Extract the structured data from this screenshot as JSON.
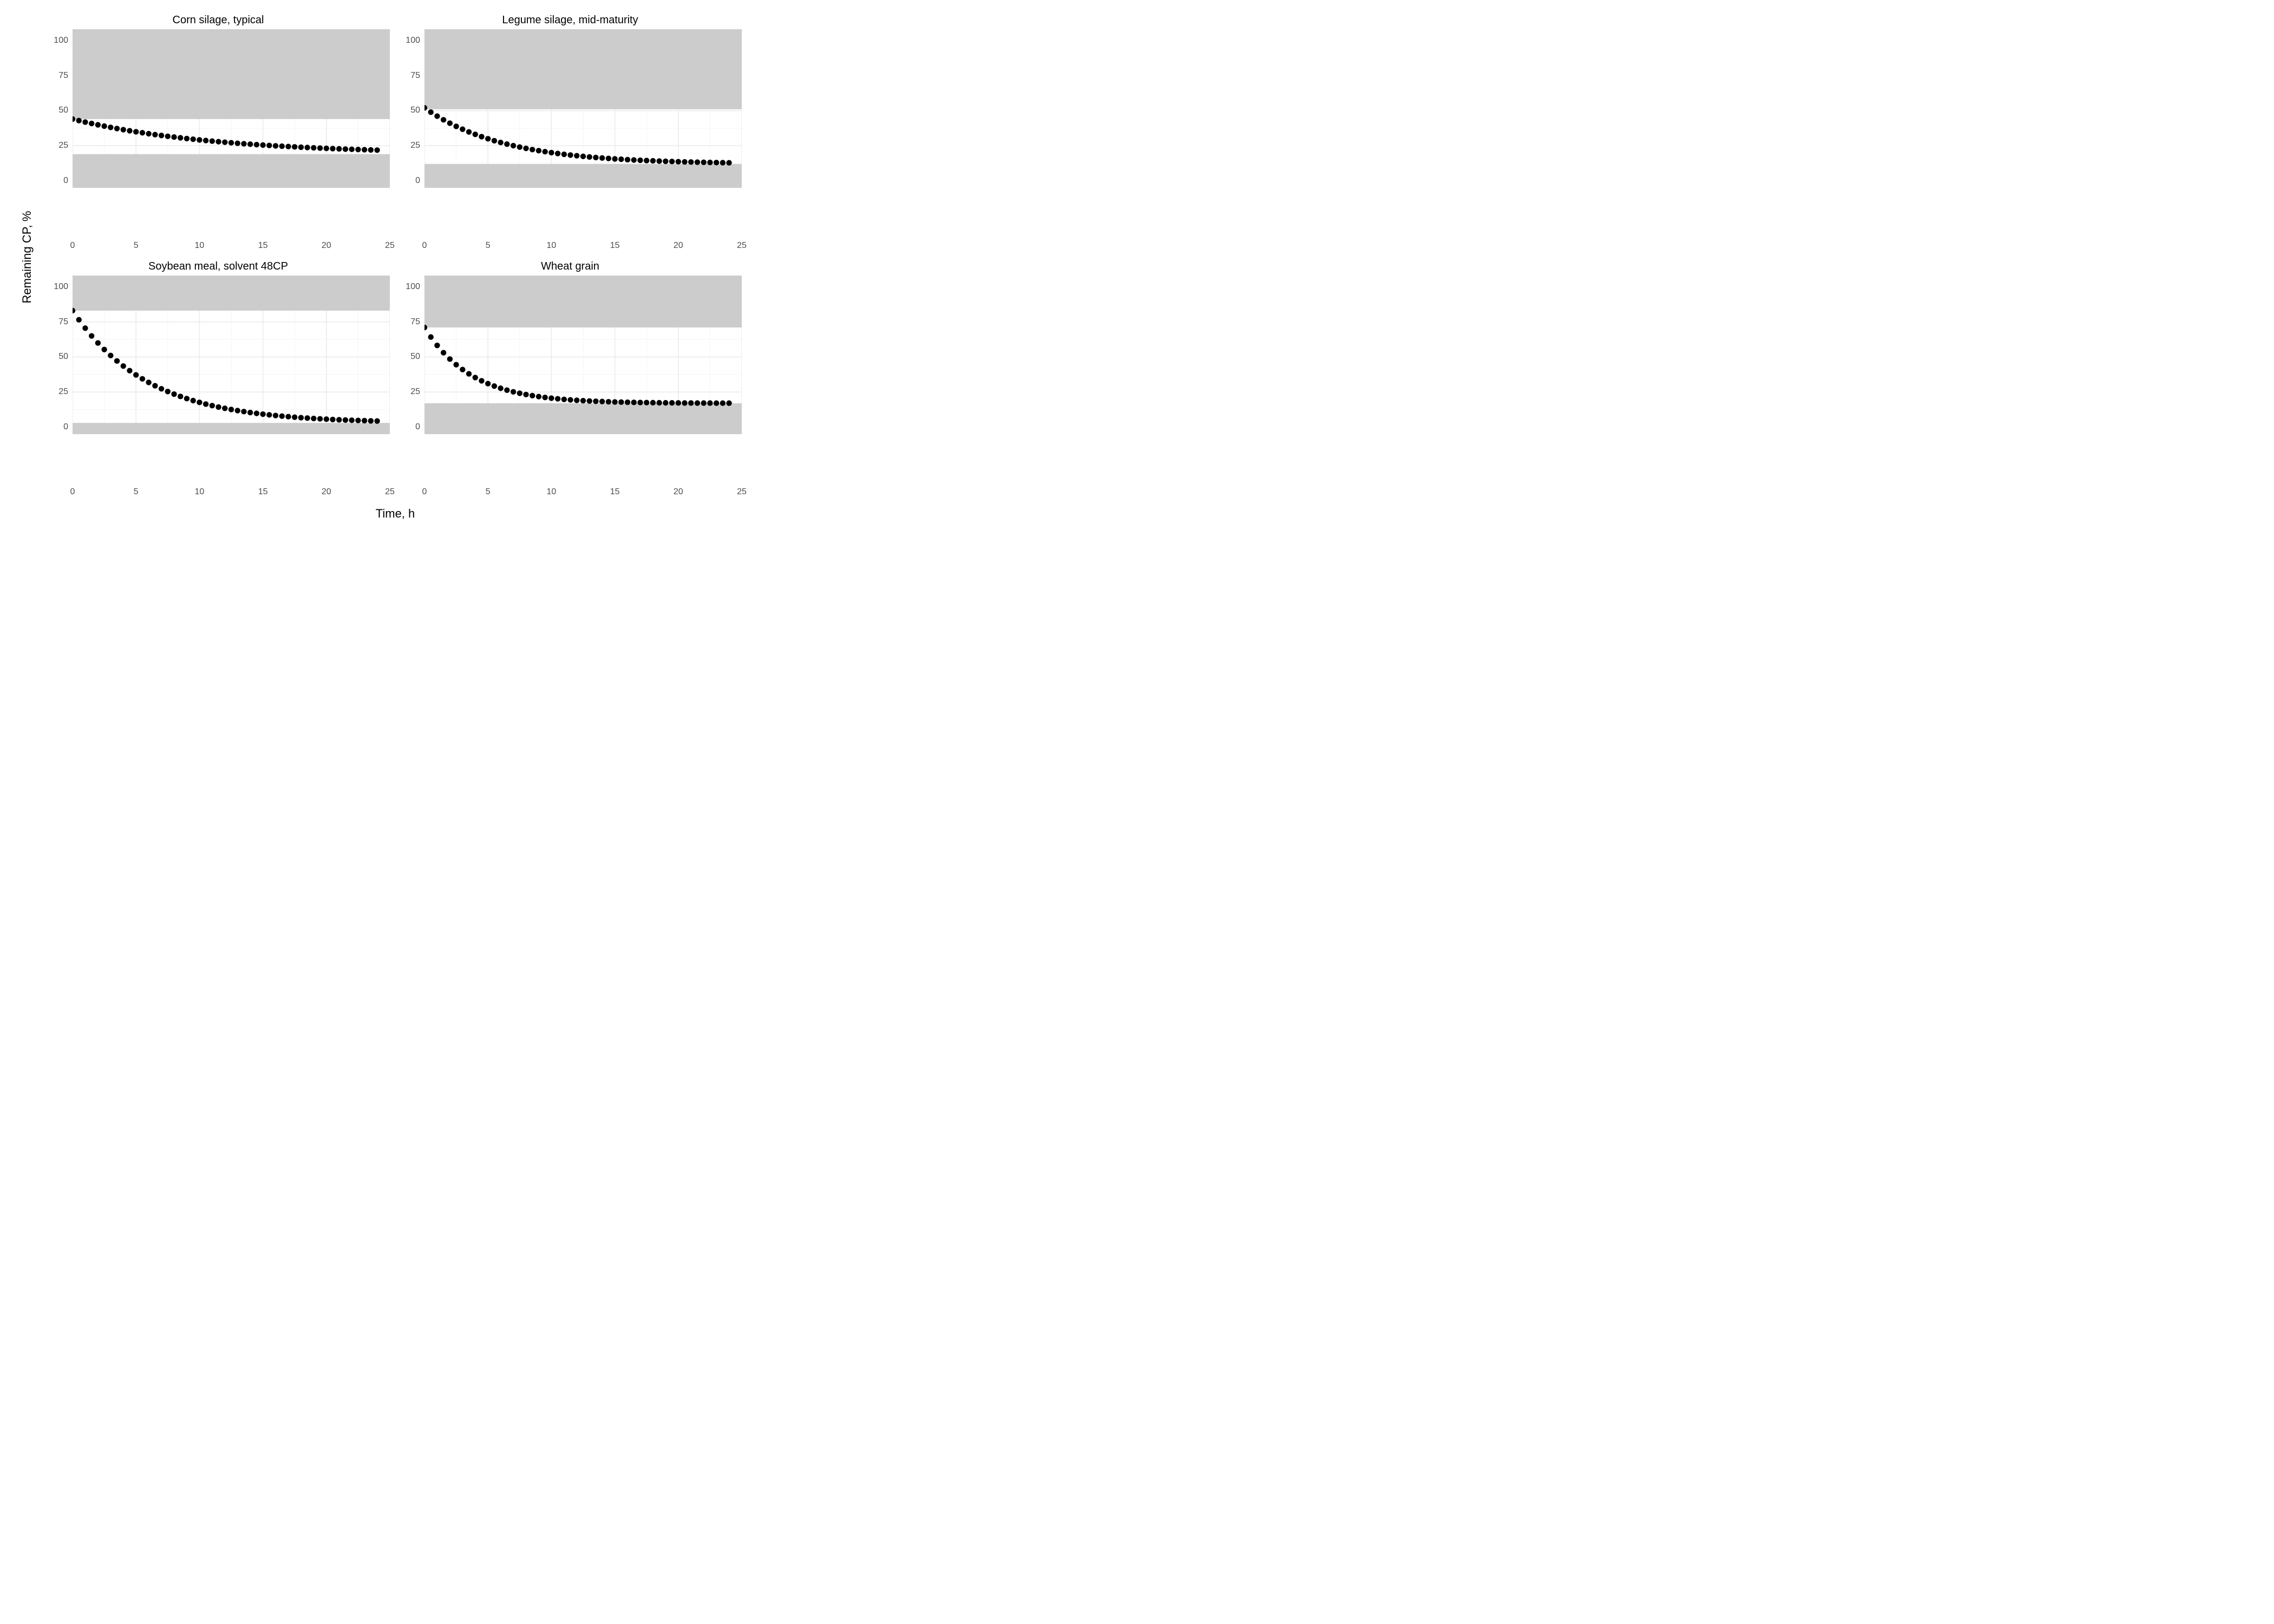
{
  "figure": {
    "xlabel": "Time, h",
    "ylabel": "Remaining CP, %",
    "xlim": [
      0,
      25
    ],
    "ylim": [
      -5,
      108
    ],
    "xticks": [
      0,
      5,
      10,
      15,
      20,
      25
    ],
    "yticks": [
      0,
      25,
      50,
      75,
      100
    ],
    "panel_bg": "#ffffff",
    "outer_bg": "#ffffff",
    "grid_major_color": "#ebebeb",
    "grid_minor_color": "#f5f5f5",
    "band_fill": "#cccccc",
    "band_opacity": 1.0,
    "point_color": "#000000",
    "point_radius": 5.2,
    "title_fontsize": 20,
    "tick_fontsize": 16,
    "label_fontsize": 22,
    "x_step": 0.5,
    "panels": [
      {
        "title": "Corn silage, typical",
        "upper_band": {
          "ymin": 44,
          "ymax": 108
        },
        "lower_band": {
          "ymin": -5,
          "ymax": 19
        },
        "curve": {
          "A": 25,
          "plateau": 19,
          "k": 0.09,
          "t0": 0
        }
      },
      {
        "title": "Legume silage, mid-maturity",
        "upper_band": {
          "ymin": 51,
          "ymax": 108
        },
        "lower_band": {
          "ymin": -5,
          "ymax": 12
        },
        "curve": {
          "A": 40,
          "plateau": 12,
          "k": 0.16,
          "t0": 0
        }
      },
      {
        "title": "Soybean meal, solvent 48CP",
        "upper_band": {
          "ymin": 83,
          "ymax": 108
        },
        "lower_band": {
          "ymin": -5,
          "ymax": 3
        },
        "curve": {
          "A": 80,
          "plateau": 3,
          "k": 0.17,
          "t0": 0
        }
      },
      {
        "title": "Wheat grain",
        "upper_band": {
          "ymin": 71,
          "ymax": 108
        },
        "lower_band": {
          "ymin": -5,
          "ymax": 17
        },
        "curve": {
          "A": 54,
          "plateau": 17,
          "k": 0.27,
          "t0": 0
        }
      }
    ]
  }
}
